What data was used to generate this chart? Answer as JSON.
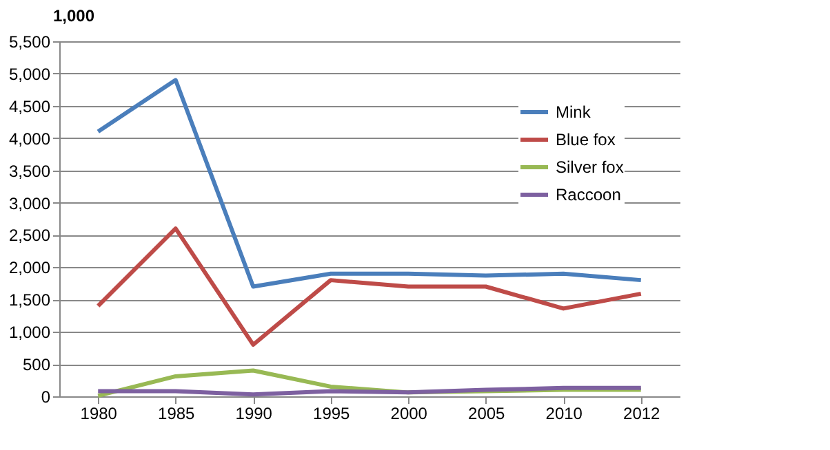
{
  "chart_data": {
    "type": "line",
    "ylabel": "1,000",
    "categories": [
      "1980",
      "1985",
      "1990",
      "1995",
      "2000",
      "2005",
      "2010",
      "2012"
    ],
    "series": [
      {
        "name": "Mink",
        "color": "#4a7ebb",
        "values": [
          4100,
          4900,
          1700,
          1900,
          1900,
          1870,
          1900,
          1800
        ]
      },
      {
        "name": "Blue fox",
        "color": "#be4b48",
        "values": [
          1400,
          2600,
          800,
          1800,
          1700,
          1700,
          1360,
          1590
        ]
      },
      {
        "name": "Silver fox",
        "color": "#98b954",
        "values": [
          10,
          310,
          400,
          150,
          60,
          80,
          100,
          100
        ]
      },
      {
        "name": "Raccoon",
        "color": "#7d60a0",
        "values": [
          80,
          80,
          30,
          80,
          60,
          100,
          130,
          130
        ]
      }
    ],
    "ylim": [
      0,
      5500
    ],
    "yticks": [
      0,
      500,
      {
        "value": 1000,
        "label": "1,000"
      },
      {
        "value": 1500,
        "label": "1,500"
      },
      {
        "value": 2000,
        "label": "2,000"
      },
      {
        "value": 2500,
        "label": "2,500"
      },
      {
        "value": 3000,
        "label": "3,000"
      },
      {
        "value": 3500,
        "label": "3,500"
      },
      {
        "value": 4000,
        "label": "4,000"
      },
      {
        "value": 4500,
        "label": "4,500"
      },
      {
        "value": 5000,
        "label": "5,000"
      },
      {
        "value": 5500,
        "label": "5,500"
      }
    ],
    "grid": "y",
    "legend": "top right",
    "marker": "none",
    "line_style": "solid"
  }
}
